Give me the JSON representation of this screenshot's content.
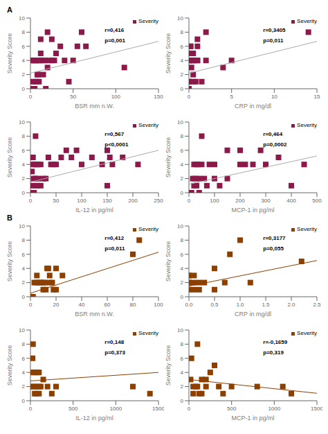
{
  "chart_data": [
    {
      "type": "scatter",
      "title": "A",
      "xlabel": "BSR mm n.W.",
      "ylabel": "Severity Score",
      "annotations": [
        "r=0,416",
        "p=0,001"
      ],
      "xlim": [
        0,
        150
      ],
      "ylim": [
        0,
        10
      ],
      "xticks": [
        0,
        50,
        100,
        150
      ],
      "yticks": [
        0,
        2,
        4,
        6,
        8,
        10
      ],
      "grid": false,
      "legend": "upper right",
      "series": [
        {
          "name": "Severity",
          "type": "scatter",
          "marker": "square",
          "color": "#8B1A4A",
          "x": [
            2,
            2,
            3,
            3,
            5,
            5,
            6,
            7,
            8,
            8,
            9,
            10,
            10,
            11,
            12,
            12,
            15,
            15,
            17,
            18,
            20,
            20,
            22,
            25,
            25,
            28,
            30,
            35,
            40,
            45,
            50,
            55,
            60,
            65,
            110
          ],
          "values": [
            0,
            4,
            1,
            4,
            4,
            0,
            4,
            1,
            2,
            4,
            2,
            1,
            4,
            4,
            5,
            7,
            2,
            4,
            4,
            0,
            3,
            8,
            4,
            4,
            7,
            4,
            5,
            6,
            4,
            1,
            4,
            6,
            8,
            6,
            3
          ]
        },
        {
          "type": "line",
          "color": "#aaaaaa",
          "x": [
            0,
            150
          ],
          "values": [
            2.2,
            6.7
          ]
        }
      ]
    },
    {
      "type": "scatter",
      "xlabel": "CRP in mg/dl",
      "ylabel": "Severity Score",
      "annotations": [
        "r=0,3405",
        "p=0,011"
      ],
      "xlim": [
        0,
        15
      ],
      "ylim": [
        0,
        10
      ],
      "xticks": [
        0,
        5,
        10,
        15
      ],
      "yticks": [
        0,
        2,
        4,
        6,
        8,
        10
      ],
      "grid": false,
      "legend": "upper right",
      "series": [
        {
          "name": "Severity",
          "type": "scatter",
          "marker": "square",
          "color": "#8B1A4A",
          "x": [
            0,
            0,
            0,
            0,
            0,
            0.1,
            0.2,
            0.2,
            0.3,
            0.4,
            0.5,
            0.5,
            0.5,
            0.5,
            0.5,
            0.8,
            1,
            1,
            1,
            1,
            1.5,
            2,
            2,
            4,
            5,
            14
          ],
          "values": [
            0,
            1,
            1,
            4,
            5,
            4,
            6,
            6,
            3,
            4,
            1,
            2,
            4,
            4,
            5,
            1,
            4,
            6,
            4,
            7,
            1,
            4,
            8,
            3,
            4,
            8
          ]
        },
        {
          "type": "line",
          "color": "#aaaaaa",
          "x": [
            0,
            15
          ],
          "values": [
            2.2,
            6.7
          ]
        }
      ]
    },
    {
      "type": "scatter",
      "xlabel": "IL-12 in pg/ml",
      "ylabel": "Severity Score",
      "annotations": [
        "r=0,567",
        "p<0,0001"
      ],
      "xlim": [
        0,
        250
      ],
      "ylim": [
        0,
        10
      ],
      "xticks": [
        0,
        50,
        100,
        150,
        200,
        250
      ],
      "yticks": [
        0,
        2,
        4,
        6,
        8,
        10
      ],
      "grid": false,
      "legend": "upper right",
      "series": [
        {
          "name": "Severity",
          "type": "scatter",
          "marker": "square",
          "color": "#8B1A4A",
          "x": [
            2,
            3,
            5,
            5,
            5,
            6,
            7,
            8,
            10,
            10,
            12,
            13,
            15,
            15,
            20,
            20,
            25,
            30,
            35,
            40,
            45,
            50,
            60,
            70,
            80,
            90,
            100,
            120,
            140,
            150,
            150,
            155,
            160,
            180,
            210
          ],
          "values": [
            0,
            3,
            1,
            4,
            5,
            2,
            0,
            4,
            2,
            8,
            4,
            1,
            2,
            4,
            1,
            4,
            2,
            2,
            5,
            4,
            4,
            4,
            5,
            6,
            5,
            6,
            4,
            5,
            4,
            6,
            1,
            5,
            4,
            5,
            4
          ]
        },
        {
          "type": "line",
          "color": "#aaaaaa",
          "x": [
            0,
            250
          ],
          "values": [
            1.5,
            6.0
          ]
        }
      ]
    },
    {
      "type": "scatter",
      "xlabel": "MCP-1 in pg/ml",
      "ylabel": "Severity Score",
      "annotations": [
        "r=0,464",
        "p=0,0002"
      ],
      "xlim": [
        0,
        500
      ],
      "ylim": [
        0,
        10
      ],
      "xticks": [
        0,
        100,
        200,
        300,
        400,
        500
      ],
      "yticks": [
        0,
        2,
        4,
        6,
        8,
        10
      ],
      "grid": false,
      "legend": "upper right",
      "series": [
        {
          "name": "Severity",
          "type": "scatter",
          "marker": "square",
          "color": "#8B1A4A",
          "x": [
            10,
            15,
            20,
            20,
            25,
            30,
            30,
            35,
            40,
            40,
            50,
            50,
            60,
            70,
            80,
            100,
            100,
            120,
            150,
            150,
            200,
            200,
            220,
            250,
            280,
            300,
            350,
            400,
            450
          ],
          "values": [
            0,
            2,
            1,
            4,
            2,
            1,
            4,
            4,
            0,
            2,
            4,
            8,
            2,
            1,
            4,
            2,
            4,
            1,
            6,
            2,
            4,
            6,
            4,
            4,
            6,
            4,
            5,
            1,
            4
          ]
        },
        {
          "type": "line",
          "color": "#aaaaaa",
          "x": [
            0,
            500
          ],
          "values": [
            1.2,
            5.2
          ]
        }
      ]
    },
    {
      "type": "scatter",
      "title": "B",
      "xlabel": "BSR mm n.W.",
      "ylabel": "Severity Score",
      "annotations": [
        "r=0,412",
        "p=0,011"
      ],
      "xlim": [
        0,
        100
      ],
      "ylim": [
        0,
        10
      ],
      "xticks": [
        0,
        20,
        40,
        60,
        80,
        100
      ],
      "yticks": [
        0,
        2,
        4,
        6,
        8,
        10
      ],
      "grid": false,
      "legend": "upper right",
      "series": [
        {
          "name": "Severity",
          "type": "scatter",
          "marker": "square",
          "color": "#8B4000",
          "x": [
            2,
            3,
            5,
            5,
            7,
            8,
            10,
            10,
            11,
            12,
            13,
            14,
            15,
            15,
            17,
            18,
            20,
            20,
            25,
            80,
            85
          ],
          "values": [
            0,
            2,
            2,
            3,
            2,
            2,
            1,
            2,
            2,
            1,
            4,
            4,
            2,
            3,
            2,
            1,
            1,
            4,
            3,
            6,
            8
          ]
        },
        {
          "type": "line",
          "color": "#8B4000",
          "x": [
            0,
            100
          ],
          "values": [
            0.5,
            6.3
          ]
        }
      ]
    },
    {
      "type": "scatter",
      "xlabel": "CRP in mg/dl",
      "ylabel": "Severity Score",
      "annotations": [
        "r=0,3177",
        "p=0,055"
      ],
      "xlim": [
        0,
        2.5
      ],
      "ylim": [
        0,
        10
      ],
      "xticks": [
        {
          "value": 0,
          "label": "0.0"
        },
        0.5,
        {
          "value": 1,
          "label": "1.0"
        },
        1.5,
        {
          "value": 2,
          "label": "2.0"
        },
        2.5
      ],
      "yticks": [
        0,
        2,
        4,
        6,
        8,
        10
      ],
      "grid": false,
      "legend": "upper right",
      "series": [
        {
          "name": "Severity",
          "type": "scatter",
          "marker": "square",
          "color": "#8B4000",
          "x": [
            0,
            0,
            0,
            0,
            0,
            0.1,
            0.1,
            0.1,
            0.2,
            0.2,
            0.3,
            0.5,
            0.5,
            0.7,
            0.8,
            1.0,
            1.2,
            2.2
          ],
          "values": [
            1,
            2,
            2,
            3,
            3,
            1,
            2,
            3,
            1,
            2,
            2,
            1,
            4,
            2,
            6,
            8,
            2,
            5
          ]
        },
        {
          "type": "line",
          "color": "#8B4000",
          "x": [
            0,
            2.5
          ],
          "values": [
            1.5,
            5.125
          ]
        }
      ]
    },
    {
      "type": "scatter",
      "xlabel": "IL-12 in pg/ml",
      "ylabel": "Severity Score",
      "annotations": [
        "r=0,148",
        "p=0,373"
      ],
      "xlim": [
        0,
        1500
      ],
      "ylim": [
        0,
        10
      ],
      "xticks": [
        0,
        500,
        1000,
        1500
      ],
      "yticks": [
        0,
        2,
        4,
        6,
        8,
        10
      ],
      "grid": false,
      "legend": "upper right",
      "series": [
        {
          "name": "Severity",
          "type": "scatter",
          "marker": "square",
          "color": "#8B4000",
          "x": [
            10,
            20,
            25,
            30,
            40,
            50,
            50,
            60,
            70,
            80,
            100,
            100,
            100,
            120,
            150,
            200,
            250,
            300,
            1200,
            1400
          ],
          "values": [
            2,
            4,
            6,
            8,
            2,
            4,
            1,
            2,
            1,
            4,
            2,
            4,
            1,
            2,
            3,
            2,
            1,
            2,
            2,
            1
          ]
        },
        {
          "type": "line",
          "color": "#8B4000",
          "x": [
            0,
            1500
          ],
          "values": [
            2.8,
            4.0
          ]
        }
      ]
    },
    {
      "type": "scatter",
      "xlabel": "MCP-1 in pg/ml",
      "ylabel": "Severity Score",
      "annotations": [
        "r=-0,1659",
        "p=0,319"
      ],
      "xlim": [
        0,
        1500
      ],
      "ylim": [
        0,
        10
      ],
      "xticks": [
        0,
        500,
        1000,
        1500
      ],
      "yticks": [
        0,
        2,
        4,
        6,
        8,
        10
      ],
      "grid": false,
      "legend": "upper right",
      "series": [
        {
          "name": "Severity",
          "type": "scatter",
          "marker": "square",
          "color": "#8B4000",
          "x": [
            20,
            30,
            50,
            50,
            80,
            100,
            100,
            120,
            150,
            150,
            200,
            200,
            250,
            300,
            350,
            400,
            500,
            800,
            1100,
            1200
          ],
          "values": [
            3,
            6,
            1,
            2,
            2,
            2,
            8,
            1,
            1,
            3,
            2,
            3,
            4,
            5,
            2,
            1,
            2,
            2,
            2,
            1
          ]
        },
        {
          "type": "line",
          "color": "#8B4000",
          "x": [
            0,
            1500
          ],
          "values": [
            3.0,
            1.05
          ]
        }
      ]
    }
  ]
}
